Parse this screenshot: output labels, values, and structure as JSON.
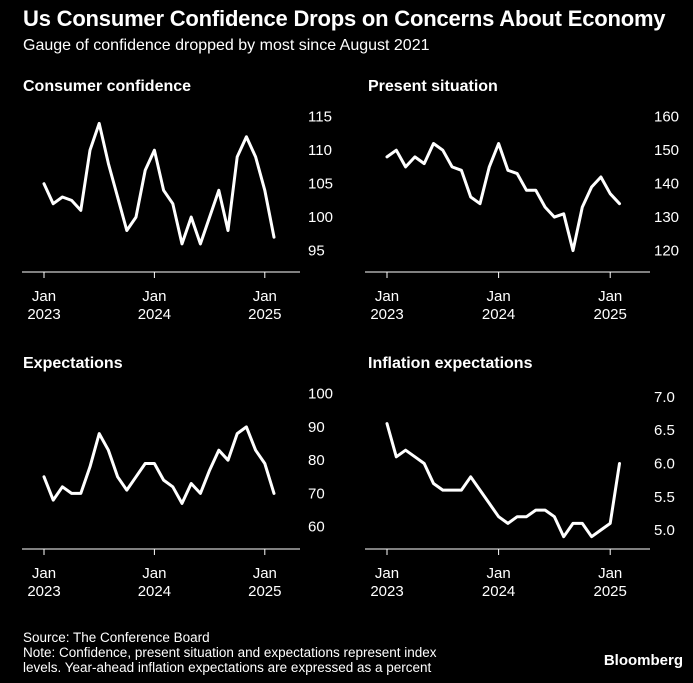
{
  "header": {
    "title": "Us Consumer Confidence Drops on Concerns About Economy",
    "subtitle": "Gauge of confidence dropped by most since August 2021"
  },
  "footer": {
    "source": "Source: The Conference Board",
    "note_line1": "Note: Confidence, present situation and expectations represent index",
    "note_line2": "levels. Year-ahead inflation expectations are expressed as a percent",
    "brand": "Bloomberg"
  },
  "chart_data": [
    {
      "type": "line",
      "title": "Consumer confidence",
      "x": [
        "2023-01",
        "2023-02",
        "2023-03",
        "2023-04",
        "2023-05",
        "2023-06",
        "2023-07",
        "2023-08",
        "2023-09",
        "2023-10",
        "2023-11",
        "2023-12",
        "2024-01",
        "2024-02",
        "2024-03",
        "2024-04",
        "2024-05",
        "2024-06",
        "2024-07",
        "2024-08",
        "2024-09",
        "2024-10",
        "2024-11",
        "2024-12",
        "2025-01",
        "2025-02"
      ],
      "values": [
        105,
        102,
        103,
        102.5,
        101,
        110,
        114,
        108,
        103,
        98,
        100,
        107,
        110,
        104,
        102,
        96,
        100,
        96,
        100,
        104,
        98,
        109,
        112,
        109,
        104,
        97
      ],
      "x_ticks": [
        {
          "x": "2023-01",
          "label": [
            "Jan",
            "2023"
          ]
        },
        {
          "x": "2024-01",
          "label": [
            "Jan",
            "2024"
          ]
        },
        {
          "x": "2025-01",
          "label": [
            "Jan",
            "2025"
          ]
        }
      ],
      "y_ticks": [
        95,
        100,
        105,
        110,
        115
      ],
      "ylim": [
        93,
        116
      ],
      "color": "#ffffff"
    },
    {
      "type": "line",
      "title": "Present situation",
      "x": [
        "2023-01",
        "2023-02",
        "2023-03",
        "2023-04",
        "2023-05",
        "2023-06",
        "2023-07",
        "2023-08",
        "2023-09",
        "2023-10",
        "2023-11",
        "2023-12",
        "2024-01",
        "2024-02",
        "2024-03",
        "2024-04",
        "2024-05",
        "2024-06",
        "2024-07",
        "2024-08",
        "2024-09",
        "2024-10",
        "2024-11",
        "2024-12",
        "2025-01",
        "2025-02"
      ],
      "values": [
        148,
        150,
        145,
        148,
        146,
        152,
        150,
        145,
        144,
        136,
        134,
        145,
        152,
        144,
        143,
        138,
        138,
        133,
        130,
        131,
        120,
        133,
        139,
        142,
        137,
        134
      ],
      "x_ticks": [
        {
          "x": "2023-01",
          "label": [
            "Jan",
            "2023"
          ]
        },
        {
          "x": "2024-01",
          "label": [
            "Jan",
            "2024"
          ]
        },
        {
          "x": "2025-01",
          "label": [
            "Jan",
            "2025"
          ]
        }
      ],
      "y_ticks": [
        120,
        130,
        140,
        150,
        160
      ],
      "ylim": [
        116,
        162
      ],
      "color": "#ffffff"
    },
    {
      "type": "line",
      "title": "Expectations",
      "x": [
        "2023-01",
        "2023-02",
        "2023-03",
        "2023-04",
        "2023-05",
        "2023-06",
        "2023-07",
        "2023-08",
        "2023-09",
        "2023-10",
        "2023-11",
        "2023-12",
        "2024-01",
        "2024-02",
        "2024-03",
        "2024-04",
        "2024-05",
        "2024-06",
        "2024-07",
        "2024-08",
        "2024-09",
        "2024-10",
        "2024-11",
        "2024-12",
        "2025-01",
        "2025-02"
      ],
      "values": [
        75,
        68,
        72,
        70,
        70,
        78,
        88,
        83,
        75,
        71,
        75,
        79,
        79,
        74,
        72,
        67,
        73,
        70,
        77,
        83,
        80,
        88,
        90,
        83,
        79,
        70
      ],
      "x_ticks": [
        {
          "x": "2023-01",
          "label": [
            "Jan",
            "2023"
          ]
        },
        {
          "x": "2024-01",
          "label": [
            "Jan",
            "2024"
          ]
        },
        {
          "x": "2025-01",
          "label": [
            "Jan",
            "2025"
          ]
        }
      ],
      "y_ticks": [
        60,
        70,
        80,
        90,
        100
      ],
      "ylim": [
        56,
        102
      ],
      "color": "#ffffff"
    },
    {
      "type": "line",
      "title": "Inflation expectations",
      "x": [
        "2023-01",
        "2023-02",
        "2023-03",
        "2023-04",
        "2023-05",
        "2023-06",
        "2023-07",
        "2023-08",
        "2023-09",
        "2023-10",
        "2023-11",
        "2023-12",
        "2024-01",
        "2024-02",
        "2024-03",
        "2024-04",
        "2024-05",
        "2024-06",
        "2024-07",
        "2024-08",
        "2024-09",
        "2024-10",
        "2024-11",
        "2024-12",
        "2025-01",
        "2025-02"
      ],
      "values": [
        6.6,
        6.1,
        6.2,
        6.1,
        6.0,
        5.7,
        5.6,
        5.6,
        5.6,
        5.8,
        5.6,
        5.4,
        5.2,
        5.1,
        5.2,
        5.2,
        5.3,
        5.3,
        5.2,
        4.9,
        5.1,
        5.1,
        4.9,
        5.0,
        5.1,
        6.0
      ],
      "x_ticks": [
        {
          "x": "2023-01",
          "label": [
            "Jan",
            "2023"
          ]
        },
        {
          "x": "2024-01",
          "label": [
            "Jan",
            "2024"
          ]
        },
        {
          "x": "2025-01",
          "label": [
            "Jan",
            "2025"
          ]
        }
      ],
      "y_ticks": [
        "5.0",
        "5.5",
        "6.0",
        "6.5",
        "7.0"
      ],
      "ylim": [
        4.85,
        7.15
      ],
      "color": "#ffffff"
    }
  ]
}
